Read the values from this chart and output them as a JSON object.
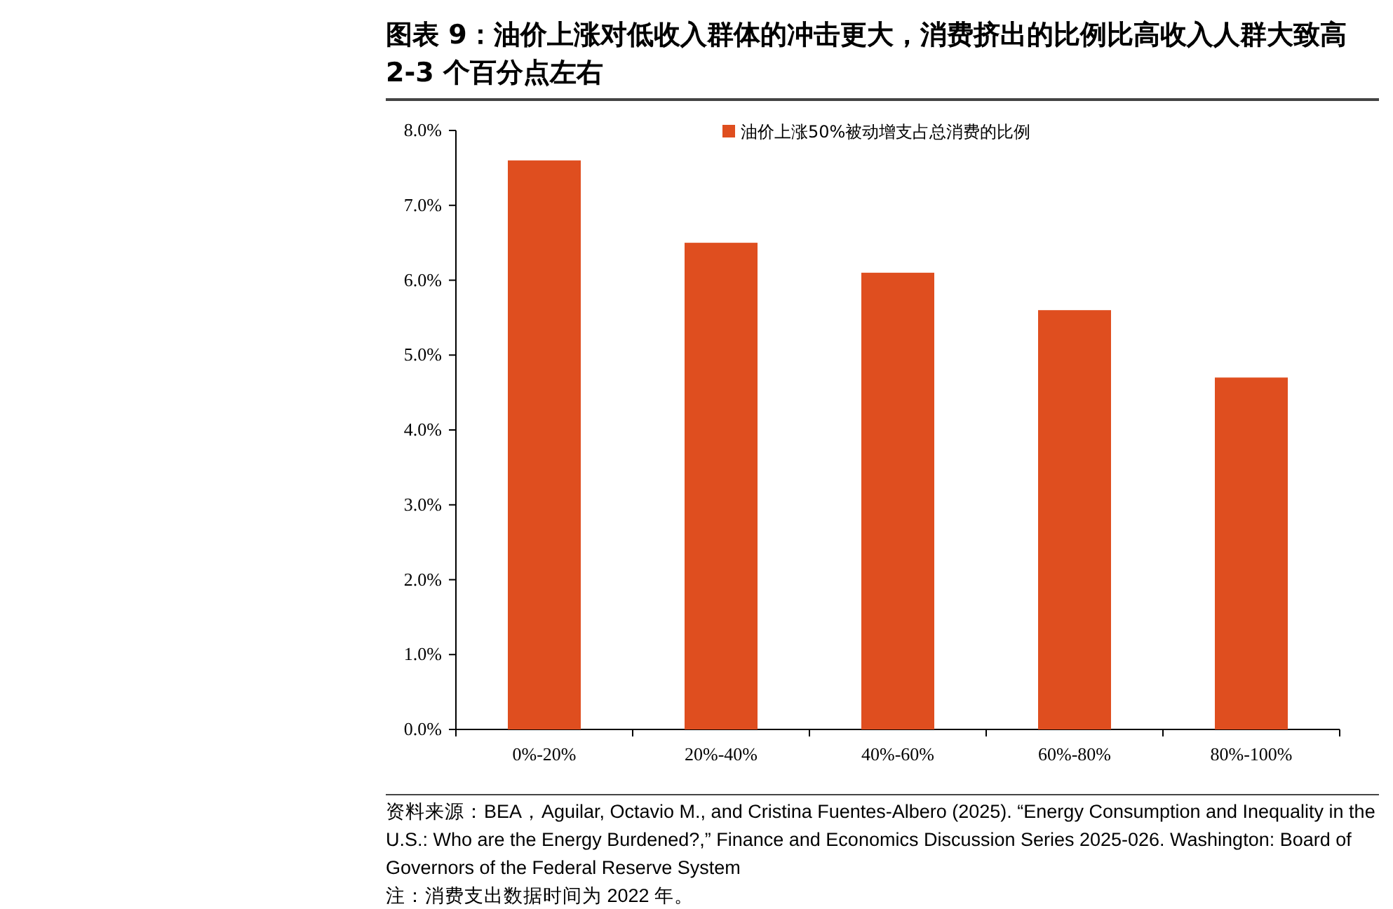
{
  "chart_data": {
    "type": "bar",
    "title": "图表 9：油价上涨对低收入群体的冲击更大，消费挤出的比例比高收入人群大致高 2-3 个百分点左右",
    "categories": [
      "0%-20%",
      "20%-40%",
      "40%-60%",
      "60%-80%",
      "80%-100%"
    ],
    "series": [
      {
        "name": "油价上涨50%被动增支占总消费的比例",
        "color": "#df4e1f",
        "values": [
          7.6,
          6.5,
          6.1,
          5.6,
          4.7
        ]
      }
    ],
    "ylim": [
      0,
      8
    ],
    "yticks": [
      {
        "value": 0,
        "label": "0.0%"
      },
      {
        "value": 1,
        "label": "1.0%"
      },
      {
        "value": 2,
        "label": "2.0%"
      },
      {
        "value": 3,
        "label": "3.0%"
      },
      {
        "value": 4,
        "label": "4.0%"
      },
      {
        "value": 5,
        "label": "5.0%"
      },
      {
        "value": 6,
        "label": "6.0%"
      },
      {
        "value": 7,
        "label": "7.0%"
      },
      {
        "value": 8,
        "label": "8.0%"
      }
    ],
    "legend": "top",
    "annotations": [
      "资料来源：BEA，Aguilar, Octavio M., and Cristina Fuentes-Albero (2025). “Energy Consumption and Inequality in the U.S.: Who are the Energy Burdened?,” Finance and Economics Discussion Series 2025-026. Washington: Board of Governors of the Federal Reserve System",
      "注：消费支出数据时间为 2022 年。"
    ]
  }
}
